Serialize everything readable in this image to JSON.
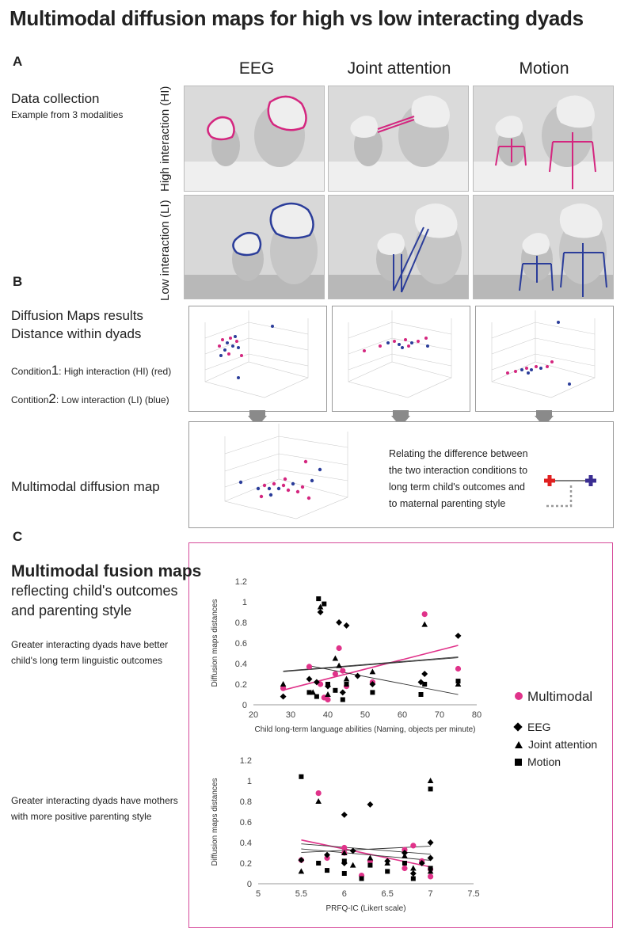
{
  "title": "Multimodal diffusion maps for high vs low interacting dyads",
  "panels": {
    "a": "A",
    "b": "B",
    "c": "C"
  },
  "columns": [
    "EEG",
    "Joint attention",
    "Motion"
  ],
  "data_collection": {
    "title": "Data collection",
    "subtitle": "Example from 3 modalities"
  },
  "rows": {
    "high": "High interaction (HI)",
    "low": "Low interaction (LI)"
  },
  "diffusion": {
    "title_line1": "Diffusion Maps results",
    "title_line2": "Distance within dyads",
    "cond1_prefix": "Condition",
    "cond1_num": "1",
    "cond1_text": ": High interaction (HI) (red)",
    "cond2_prefix": "Contition",
    "cond2_num": "2",
    "cond2_text": ": Low interaction (LI) (blue)"
  },
  "multimodal_map": {
    "label": "Multimodal diffusion map",
    "relating": [
      "Relating the difference between",
      "the two interaction conditions to",
      "long term child's outcomes and",
      "to maternal parenting style"
    ]
  },
  "fusion": {
    "title": "Multimodal fusion maps",
    "subtitle_line1": "reflecting child's outcomes",
    "subtitle_line2": "and parenting style",
    "note1_line1": "Greater interacting dyads have better",
    "note1_line2": "child's long term linguistic outcomes",
    "note2_line1": "Greater interacting dyads have mothers",
    "note2_line2": "with more positive parenting style"
  },
  "legend": {
    "multimodal": "Multimodal",
    "eeg": "EEG",
    "joint": "Joint attention",
    "motion": "Motion"
  },
  "colors": {
    "high": "#d4267f",
    "low": "#2b3d9a",
    "multimodal": "#e0338a",
    "frame": "#d64a9a",
    "arrow": "#8a8a8a",
    "cross_red": "#e02020",
    "cross_blue": "#3a2d92"
  },
  "chart_data": [
    {
      "type": "scatter",
      "xlabel": "Child long-term language abilities (Naming, objects per minute)",
      "ylabel": "Diffusion maps distances",
      "xlim": [
        20,
        80
      ],
      "ylim": [
        0,
        1.2
      ],
      "xticks": [
        "20",
        "30",
        "40",
        "50",
        "60",
        "70",
        "80"
      ],
      "yticks": [
        "0",
        "0.2",
        "0.4",
        "0.6",
        "0.8",
        "1",
        "1.2"
      ],
      "series": [
        {
          "name": "Multimodal",
          "points": [
            [
              28,
              0.16
            ],
            [
              35,
              0.37
            ],
            [
              38,
              0.2
            ],
            [
              39,
              0.07
            ],
            [
              40,
              0.05
            ],
            [
              42,
              0.3
            ],
            [
              43,
              0.55
            ],
            [
              44,
              0.33
            ],
            [
              45,
              0.18
            ],
            [
              52,
              0.22
            ],
            [
              66,
              0.88
            ],
            [
              75,
              0.35
            ]
          ]
        },
        {
          "name": "EEG",
          "points": [
            [
              28,
              0.08
            ],
            [
              35,
              0.25
            ],
            [
              37,
              0.22
            ],
            [
              38,
              0.9
            ],
            [
              40,
              0.18
            ],
            [
              43,
              0.8
            ],
            [
              44,
              0.12
            ],
            [
              45,
              0.77
            ],
            [
              48,
              0.28
            ],
            [
              52,
              0.2
            ],
            [
              65,
              0.22
            ],
            [
              66,
              0.3
            ],
            [
              75,
              0.67
            ]
          ]
        },
        {
          "name": "Joint attention",
          "points": [
            [
              28,
              0.2
            ],
            [
              36,
              0.12
            ],
            [
              38,
              0.95
            ],
            [
              40,
              0.1
            ],
            [
              42,
              0.45
            ],
            [
              43,
              0.38
            ],
            [
              45,
              0.25
            ],
            [
              52,
              0.32
            ],
            [
              66,
              0.78
            ],
            [
              75,
              0.2
            ]
          ]
        },
        {
          "name": "Motion",
          "points": [
            [
              35,
              0.12
            ],
            [
              37,
              0.08
            ],
            [
              37.5,
              1.03
            ],
            [
              39,
              0.98
            ],
            [
              40,
              0.2
            ],
            [
              42,
              0.14
            ],
            [
              44,
              0.05
            ],
            [
              45,
              0.2
            ],
            [
              52,
              0.12
            ],
            [
              65,
              0.1
            ],
            [
              66,
              0.2
            ],
            [
              75,
              0.23
            ]
          ]
        }
      ]
    },
    {
      "type": "scatter",
      "xlabel": "PRFQ-IC (Likert scale)",
      "ylabel": "Diffusion maps distances",
      "xlim": [
        5,
        7.5
      ],
      "ylim": [
        0,
        1.2
      ],
      "xticks": [
        "5",
        "5.5",
        "6",
        "6.5",
        "7",
        "7.5"
      ],
      "yticks": [
        "0",
        "0.2",
        "0.4",
        "0.6",
        "0.8",
        "1",
        "1.2"
      ],
      "series": [
        {
          "name": "Multimodal",
          "points": [
            [
              5.5,
              0.23
            ],
            [
              5.7,
              0.88
            ],
            [
              5.8,
              0.25
            ],
            [
              6,
              0.35
            ],
            [
              6,
              0.3
            ],
            [
              6.2,
              0.08
            ],
            [
              6.3,
              0.22
            ],
            [
              6.7,
              0.33
            ],
            [
              6.7,
              0.15
            ],
            [
              6.8,
              0.37
            ],
            [
              6.9,
              0.22
            ],
            [
              7,
              0.14
            ],
            [
              7,
              0.07
            ]
          ]
        },
        {
          "name": "EEG",
          "points": [
            [
              5.5,
              0.23
            ],
            [
              5.8,
              0.28
            ],
            [
              6,
              0.67
            ],
            [
              6,
              0.2
            ],
            [
              6.1,
              0.32
            ],
            [
              6.3,
              0.77
            ],
            [
              6.5,
              0.22
            ],
            [
              6.7,
              0.3
            ],
            [
              6.8,
              0.1
            ],
            [
              6.9,
              0.2
            ],
            [
              7,
              0.4
            ],
            [
              7,
              0.25
            ]
          ]
        },
        {
          "name": "Joint attention",
          "points": [
            [
              5.5,
              0.12
            ],
            [
              5.7,
              0.8
            ],
            [
              6,
              0.3
            ],
            [
              6.1,
              0.18
            ],
            [
              6.3,
              0.25
            ],
            [
              6.5,
              0.2
            ],
            [
              6.7,
              0.27
            ],
            [
              6.8,
              0.15
            ],
            [
              7,
              1.0
            ],
            [
              7,
              0.12
            ]
          ]
        },
        {
          "name": "Motion",
          "points": [
            [
              5.5,
              1.04
            ],
            [
              5.7,
              0.2
            ],
            [
              5.8,
              0.13
            ],
            [
              6,
              0.22
            ],
            [
              6,
              0.1
            ],
            [
              6.2,
              0.05
            ],
            [
              6.3,
              0.18
            ],
            [
              6.5,
              0.12
            ],
            [
              6.7,
              0.2
            ],
            [
              6.8,
              0.05
            ],
            [
              7,
              0.92
            ],
            [
              7,
              0.15
            ]
          ]
        }
      ]
    }
  ]
}
